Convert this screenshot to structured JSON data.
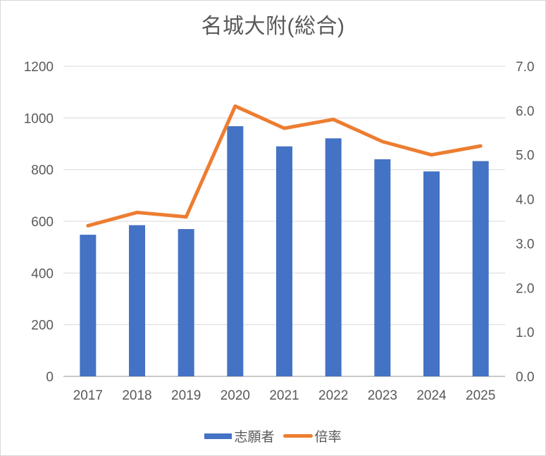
{
  "chart_data": {
    "type": "combo",
    "title": "名城大附(総合)",
    "categories": [
      "2017",
      "2018",
      "2019",
      "2020",
      "2021",
      "2022",
      "2023",
      "2024",
      "2025"
    ],
    "series": [
      {
        "name": "志願者",
        "type": "bar",
        "axis": "left",
        "color": "#4472C4",
        "values": [
          548,
          585,
          570,
          968,
          890,
          921,
          840,
          793,
          833
        ]
      },
      {
        "name": "倍率",
        "type": "line",
        "axis": "right",
        "color": "#ED7D31",
        "values": [
          3.4,
          3.7,
          3.6,
          6.1,
          5.6,
          5.8,
          5.3,
          5.0,
          5.2
        ]
      }
    ],
    "left_axis": {
      "min": 0,
      "max": 1200,
      "step": 200,
      "decimals": 0
    },
    "right_axis": {
      "min": 0,
      "max": 7,
      "step": 1,
      "decimals": 1
    },
    "grid": true,
    "legend_position": "bottom",
    "colors": {
      "text": "#595959",
      "gridline": "#D9D9D9",
      "axis_line": "#C9C9C9",
      "background": "#FFFFFF",
      "border": "#D9D9D9"
    }
  }
}
